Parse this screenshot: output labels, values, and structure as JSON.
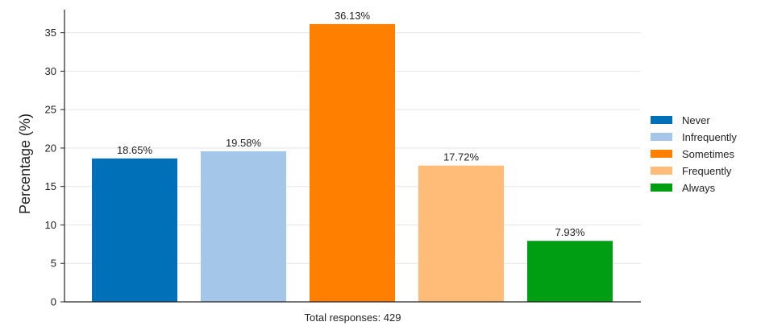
{
  "chart_data": {
    "type": "bar",
    "categories": [
      "Never",
      "Infrequently",
      "Sometimes",
      "Frequently",
      "Always"
    ],
    "values": [
      18.65,
      19.58,
      36.13,
      17.72,
      7.93
    ],
    "data_labels": [
      "18.65%",
      "19.58%",
      "36.13%",
      "17.72%",
      "7.93%"
    ],
    "colors": [
      "#0070b8",
      "#a4c6e8",
      "#ff7f00",
      "#ffbb78",
      "#009e13"
    ],
    "title": "",
    "xlabel": "",
    "ylabel": "Percentage (%)",
    "note": "Total responses: 429",
    "ylim": [
      0,
      38
    ],
    "yticks": [
      0,
      5,
      10,
      15,
      20,
      25,
      30,
      35
    ],
    "grid": "horizontal",
    "legend": {
      "position": "right",
      "entries": [
        "Never",
        "Infrequently",
        "Sometimes",
        "Frequently",
        "Always"
      ]
    }
  }
}
